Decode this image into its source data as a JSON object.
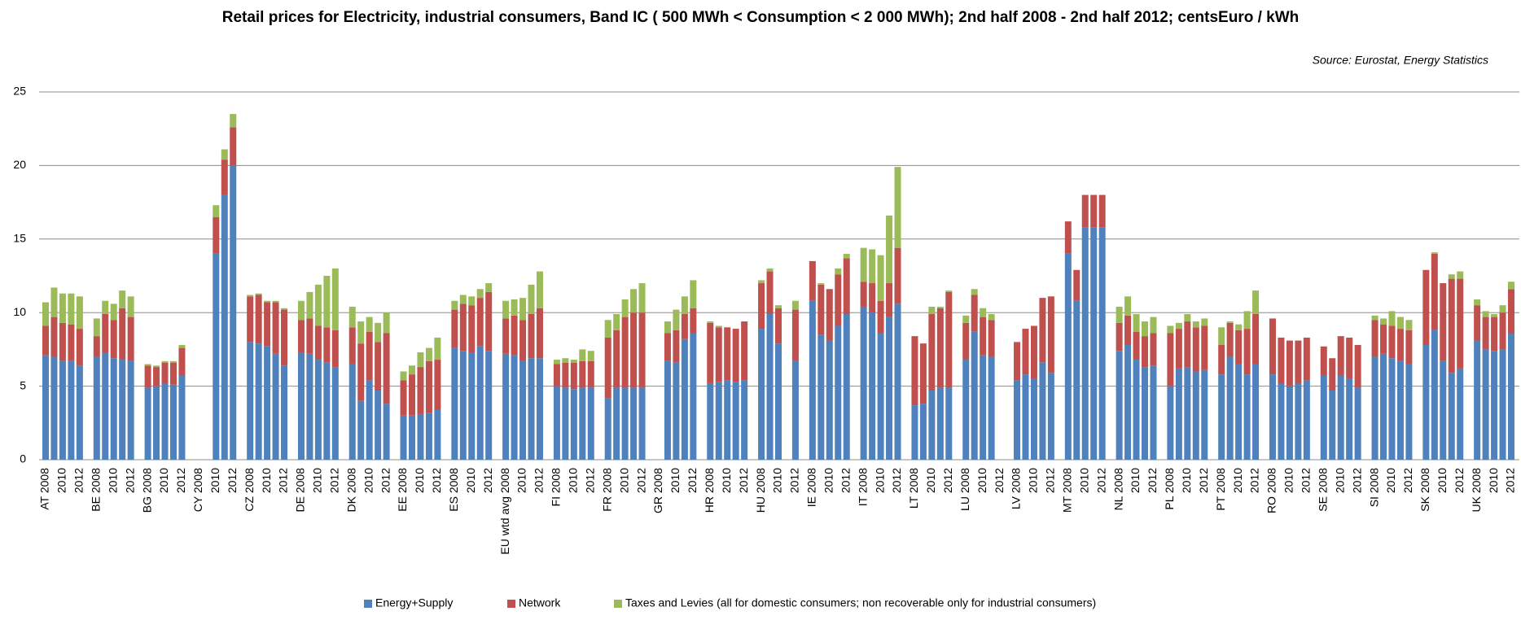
{
  "chart_data": {
    "type": "stacked_bar",
    "title": "Retail prices for Electricity, industrial consumers, Band IC ( 500 MWh < Consumption < 2 000 MWh); 2nd half 2008 - 2nd half 2012; centsEuro / kWh",
    "source": "Source: Eurostat, Energy Statistics",
    "ylim": [
      0,
      25
    ],
    "yticks": [
      0,
      5,
      10,
      15,
      20,
      25
    ],
    "grid": true,
    "legend": "bottom",
    "categories": [
      "AT 2008",
      null,
      "2010",
      null,
      "2012",
      null,
      "BE 2008",
      null,
      "2010",
      null,
      "2012",
      null,
      "BG 2008",
      null,
      "2010",
      null,
      "2012",
      null,
      "CY 2008",
      null,
      "2010",
      null,
      "2012",
      null,
      "CZ 2008",
      null,
      "2010",
      null,
      "2012",
      null,
      "DE 2008",
      null,
      "2010",
      null,
      "2012",
      null,
      "DK 2008",
      null,
      "2010",
      null,
      "2012",
      null,
      "EE 2008",
      null,
      "2010",
      null,
      "2012",
      null,
      "ES 2008",
      null,
      "2010",
      null,
      "2012",
      null,
      "EU wtd avg 2008",
      null,
      "2010",
      null,
      "2012",
      null,
      "FI 2008",
      null,
      "2010",
      null,
      "2012",
      null,
      "FR 2008",
      null,
      "2010",
      null,
      "2012",
      null,
      "GR 2008",
      null,
      "2010",
      null,
      "2012",
      null,
      "HR 2008",
      null,
      "2010",
      null,
      "2012",
      null,
      "HU 2008",
      null,
      "2010",
      null,
      "2012",
      null,
      "IE 2008",
      null,
      "2010",
      null,
      "2012",
      null,
      "IT 2008",
      null,
      "2010",
      null,
      "2012",
      null,
      "LT 2008",
      null,
      "2010",
      null,
      "2012",
      null,
      "LU 2008",
      null,
      "2010",
      null,
      "2012",
      null,
      "LV 2008",
      null,
      "2010",
      null,
      "2012",
      null,
      "MT 2008",
      null,
      "2010",
      null,
      "2012",
      null,
      "NL 2008",
      null,
      "2010",
      null,
      "2012",
      null,
      "PL 2008",
      null,
      "2010",
      null,
      "2012",
      null,
      "PT 2008",
      null,
      "2010",
      null,
      "2012",
      null,
      "RO 2008",
      null,
      "2010",
      null,
      "2012",
      null,
      "SE 2008",
      null,
      "2010",
      null,
      "2012",
      null,
      "SI 2008",
      null,
      "2010",
      null,
      "2012",
      null,
      "SK 2008",
      null,
      "2010",
      null,
      "2012",
      null,
      "UK 2008",
      null,
      "2010",
      null,
      "2012"
    ],
    "series": [
      {
        "name": "Energy+Supply",
        "color": "#4f81bd",
        "values": [
          7.1,
          7.0,
          6.7,
          6.7,
          6.4,
          null,
          7.0,
          7.3,
          6.9,
          6.8,
          6.7,
          null,
          4.9,
          5.0,
          5.2,
          5.1,
          5.7,
          null,
          null,
          null,
          14.0,
          18.0,
          20.0,
          null,
          8.0,
          7.9,
          7.7,
          7.2,
          6.4,
          null,
          7.3,
          7.2,
          6.8,
          6.6,
          6.3,
          null,
          6.5,
          4.0,
          5.4,
          4.7,
          3.8,
          null,
          3.0,
          3.0,
          3.1,
          3.2,
          3.4,
          null,
          7.6,
          7.4,
          7.3,
          7.7,
          7.4,
          null,
          7.2,
          7.1,
          6.7,
          6.9,
          6.9,
          null,
          5.0,
          4.9,
          4.8,
          4.9,
          4.9,
          null,
          4.2,
          4.9,
          4.9,
          4.9,
          4.9,
          null,
          null,
          6.7,
          6.6,
          8.2,
          8.6,
          null,
          5.2,
          5.3,
          5.4,
          5.3,
          5.4,
          null,
          8.9,
          9.9,
          7.9,
          null,
          6.7,
          null,
          10.8,
          8.5,
          8.1,
          9.1,
          9.9,
          null,
          10.4,
          10.0,
          8.6,
          9.7,
          10.6,
          null,
          3.7,
          3.8,
          4.7,
          4.9,
          4.9,
          null,
          6.8,
          8.7,
          7.1,
          7.0,
          null,
          null,
          5.4,
          5.8,
          5.5,
          6.6,
          5.9,
          null,
          14.0,
          10.8,
          15.8,
          15.8,
          15.8,
          null,
          7.4,
          7.8,
          6.8,
          6.3,
          6.4,
          null,
          5.0,
          6.2,
          6.3,
          6.0,
          6.1,
          null,
          5.8,
          7.0,
          6.5,
          5.8,
          6.5,
          null,
          5.8,
          5.2,
          5.0,
          5.2,
          5.4,
          null,
          5.7,
          4.7,
          5.7,
          5.5,
          4.9,
          null,
          7.0,
          7.2,
          6.9,
          6.7,
          6.5,
          null,
          7.8,
          8.8,
          6.7,
          5.9,
          6.2,
          null,
          8.1,
          7.5,
          7.4,
          7.5,
          8.6
        ]
      },
      {
        "name": "Network",
        "color": "#c0504d",
        "values": [
          2.0,
          2.7,
          2.6,
          2.5,
          2.5,
          null,
          1.4,
          2.6,
          2.6,
          3.5,
          3.0,
          null,
          1.5,
          1.3,
          1.4,
          1.5,
          1.9,
          null,
          null,
          null,
          2.5,
          2.4,
          2.6,
          null,
          3.1,
          3.3,
          3.0,
          3.5,
          3.8,
          null,
          2.2,
          2.4,
          2.3,
          2.4,
          2.5,
          null,
          2.5,
          3.9,
          3.3,
          3.3,
          4.8,
          null,
          2.4,
          2.8,
          3.2,
          3.5,
          3.4,
          null,
          2.6,
          3.2,
          3.2,
          3.3,
          4.0,
          null,
          2.4,
          2.7,
          2.8,
          3.0,
          3.4,
          null,
          1.5,
          1.7,
          1.8,
          1.8,
          1.8,
          null,
          4.1,
          3.9,
          4.8,
          5.1,
          5.1,
          null,
          null,
          1.9,
          2.2,
          1.7,
          1.7,
          null,
          4.1,
          3.7,
          3.6,
          3.6,
          4.0,
          null,
          3.1,
          2.9,
          2.4,
          null,
          3.5,
          null,
          2.7,
          3.4,
          3.5,
          3.5,
          3.8,
          null,
          1.7,
          2.0,
          2.2,
          2.3,
          3.8,
          null,
          4.7,
          4.1,
          5.2,
          5.4,
          6.5,
          null,
          2.5,
          2.5,
          2.6,
          2.5,
          null,
          null,
          2.6,
          3.1,
          3.6,
          4.4,
          5.2,
          null,
          2.2,
          2.1,
          2.2,
          2.2,
          2.2,
          null,
          1.9,
          2.0,
          1.9,
          2.1,
          2.2,
          null,
          3.6,
          2.7,
          3.1,
          3.0,
          3.0,
          null,
          2.0,
          2.3,
          2.3,
          3.1,
          3.4,
          null,
          3.8,
          3.1,
          3.1,
          2.9,
          2.9,
          null,
          2.0,
          2.2,
          2.7,
          2.8,
          2.9,
          null,
          2.5,
          2.0,
          2.2,
          2.2,
          2.3,
          null,
          5.1,
          5.2,
          5.3,
          6.4,
          6.1,
          null,
          2.4,
          2.2,
          2.3,
          2.5,
          3.0
        ]
      },
      {
        "name": "Taxes and Levies (all for domestic consumers; non recoverable only for industrial consumers)",
        "color": "#9bbb59",
        "values": [
          1.6,
          2.0,
          2.0,
          2.1,
          2.2,
          null,
          1.2,
          0.9,
          1.1,
          1.2,
          1.4,
          null,
          0.1,
          0.1,
          0.1,
          0.1,
          0.2,
          null,
          null,
          null,
          0.8,
          0.7,
          0.9,
          null,
          0.1,
          0.1,
          0.1,
          0.1,
          0.1,
          null,
          1.3,
          1.8,
          2.8,
          3.5,
          4.2,
          null,
          1.4,
          1.5,
          1.0,
          1.3,
          1.4,
          null,
          0.6,
          0.6,
          1.0,
          0.9,
          1.5,
          null,
          0.6,
          0.6,
          0.6,
          0.6,
          0.6,
          null,
          1.2,
          1.1,
          1.5,
          2.0,
          2.5,
          null,
          0.3,
          0.3,
          0.2,
          0.8,
          0.7,
          null,
          1.2,
          1.1,
          1.2,
          1.6,
          2.0,
          null,
          null,
          0.8,
          1.4,
          1.2,
          1.9,
          null,
          0.1,
          0.1,
          0,
          0,
          0,
          null,
          0.2,
          0.2,
          0.2,
          null,
          0.6,
          null,
          0,
          0.1,
          0,
          0.4,
          0.3,
          null,
          2.3,
          2.3,
          3.1,
          4.6,
          5.5,
          null,
          0,
          0,
          0.5,
          0.1,
          0.1,
          null,
          0.5,
          0.4,
          0.6,
          0.4,
          null,
          null,
          0,
          0,
          0,
          0,
          0,
          null,
          0,
          0,
          0,
          0,
          0,
          null,
          1.1,
          1.3,
          1.2,
          1.0,
          1.1,
          null,
          0.5,
          0.4,
          0.5,
          0.4,
          0.5,
          null,
          1.2,
          0.1,
          0.4,
          1.2,
          1.6,
          null,
          0,
          0,
          0,
          0,
          0,
          null,
          0,
          0,
          0,
          0,
          0,
          null,
          0.3,
          0.4,
          1.0,
          0.8,
          0.7,
          null,
          0,
          0.1,
          0,
          0.3,
          0.5,
          null,
          0.4,
          0.4,
          0.2,
          0.5,
          0.5
        ]
      }
    ]
  }
}
